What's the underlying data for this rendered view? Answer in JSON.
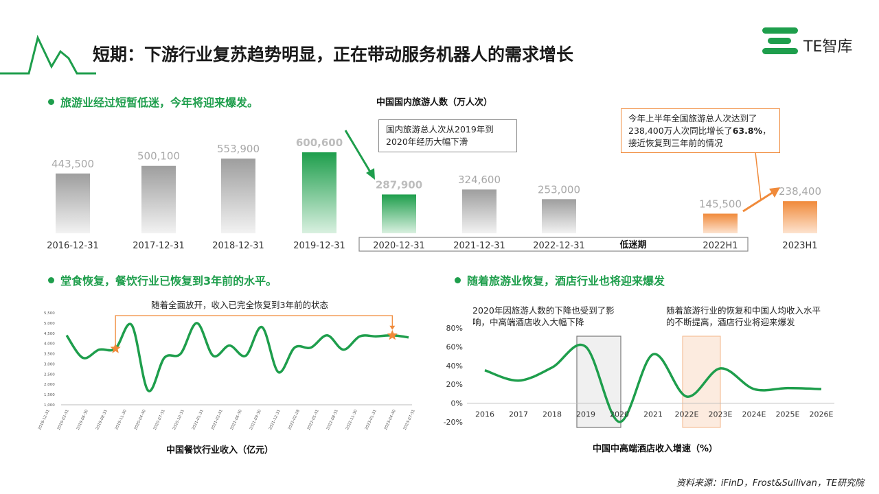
{
  "title": "短期：下游行业复苏趋势明显，正在带动服务机器人的需求增长",
  "brand": {
    "name": "TE智库",
    "color": "#1e9e4c"
  },
  "source": "资料来源：iFinD，Frost&Sullivan，TE研究院",
  "colors": {
    "green": "#1e9e4c",
    "orange": "#f08a3a",
    "gray": "#b5b5b5"
  },
  "sections": {
    "tourism": "旅游业经过短暂低迷，今年将迎来爆发。",
    "catering": "堂食恢复，餐饮行业已恢复到3年前的水平。",
    "hotel": "随着旅游业恢复，酒店行业也将迎来爆发"
  },
  "tourism_annotations": {
    "bubble_left": "国内旅游总人次从2019年到2020年经历大幅下滑",
    "bubble_right_1": "今年上半年全国旅游总人次达到了238,400万人次同比增长了",
    "bubble_right_bold": "63.8%",
    "bubble_right_2": "，接近恢复到三年前的情况",
    "low_period": "低迷期"
  },
  "catering_annotations": {
    "recovery": "随着全面放开，收入已完全恢复到3年前的状态"
  },
  "hotel_annotations": {
    "drop": "2020年因旅游人数的下降也受到了影响，中高端酒店收入大幅下降",
    "rise": "随着旅游行业的恢复和中国人均收入水平的不断提高，酒店行业将迎来爆发"
  },
  "chart_data": [
    {
      "id": "tourism",
      "type": "bar",
      "title": "中国国内旅游人数（万人次）",
      "categories": [
        "2016-12-31",
        "2017-12-31",
        "2018-12-31",
        "2019-12-31",
        "2020-12-31",
        "2021-12-31",
        "2022-12-31",
        "2022H1",
        "2023H1"
      ],
      "values": [
        443500,
        500100,
        553900,
        600600,
        287900,
        324600,
        253000,
        145500,
        238400
      ],
      "labels": [
        "443,500",
        "500,100",
        "553,900",
        "600,600",
        "287,900",
        "324,600",
        "253,000",
        "145,500",
        "238,400"
      ],
      "bar_colors": [
        "gray",
        "gray",
        "gray",
        "green",
        "green",
        "gray",
        "gray",
        "orange",
        "orange"
      ],
      "ylim": [
        0,
        700000
      ]
    },
    {
      "id": "catering",
      "type": "line",
      "title": "中国餐饮行业收入（亿元）",
      "x": [
        "2018-12-31",
        "2019-03-31",
        "2019-06-30",
        "2019-08-31",
        "2019-11-30",
        "2020-02-29",
        "2020-04-30",
        "2020-07-31",
        "2020-10-31",
        "2021-01-31",
        "2021-03-31",
        "2021-06-30",
        "2021-08-31",
        "2021-11-30",
        "2022-01-31",
        "2022-03-31",
        "2022-06-30",
        "2022-08-31",
        "2022-11-30",
        "2023-01-31",
        "2023-04-30",
        "2023-07-31"
      ],
      "x_ticks": [
        "2018-12-31",
        "2019-03-31",
        "2019-06-30",
        "2019-08-31",
        "2019-11-30",
        "2020-04-30",
        "2020-07-31",
        "2020-10-31",
        "2021-01-31",
        "2021-03-31",
        "2021-06-30",
        "2021-09-30",
        "2021-12-31",
        "2022-02-28",
        "2022-05-31",
        "2022-08-31",
        "2022-11-30",
        "2023-01-31",
        "2023-04-30",
        "2023-07-31"
      ],
      "values": [
        4400,
        3300,
        3700,
        3750,
        4900,
        1700,
        3300,
        3500,
        5000,
        3400,
        3900,
        3400,
        4800,
        2600,
        3800,
        3800,
        4400,
        3700,
        4350,
        4350,
        4400,
        4300
      ],
      "y_ticks": [
        "5,500",
        "5,000",
        "4,500",
        "4,000",
        "3,500",
        "3,000",
        "2,500",
        "2,000",
        "1,500",
        "1,000"
      ],
      "ylim": [
        1000,
        5500
      ],
      "highlight_points": [
        3,
        20
      ]
    },
    {
      "id": "hotel",
      "type": "line",
      "title": "中国中高端酒店收入增速（%）",
      "categories": [
        "2016",
        "2017",
        "2018",
        "2019",
        "2020",
        "2021",
        "2022E",
        "2023E",
        "2024E",
        "2025E",
        "2026E"
      ],
      "values": [
        35,
        24,
        38,
        60,
        -20,
        52,
        7,
        37,
        15,
        16,
        15
      ],
      "y_ticks": [
        "80%",
        "60%",
        "40%",
        "20%",
        "0%",
        "-20%"
      ],
      "ylim": [
        -20,
        80
      ]
    }
  ]
}
